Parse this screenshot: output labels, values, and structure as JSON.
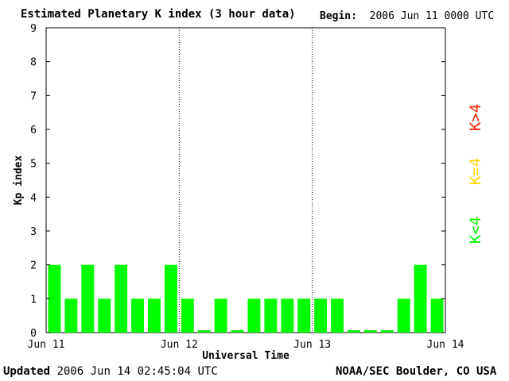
{
  "header": {
    "title": "Estimated Planetary K index (3 hour data)",
    "begin_label": "Begin:",
    "begin_value": "2006 Jun 11 0000 UTC"
  },
  "footer": {
    "updated_label": "Updated",
    "updated_value": "2006 Jun 14 02:45:04 UTC",
    "credit": "NOAA/SEC Boulder, CO USA"
  },
  "legend": [
    {
      "label": "K<4",
      "color": "#00ff00"
    },
    {
      "label": "K=4",
      "color": "#ffd700"
    },
    {
      "label": "K>4",
      "color": "#ff2000"
    }
  ],
  "chart_data": {
    "type": "bar",
    "title": "Estimated Planetary K index (3 hour data)",
    "xlabel": "Universal Time",
    "ylabel": "Kp index",
    "ylim": [
      0,
      9
    ],
    "yticks": [
      0,
      1,
      2,
      3,
      4,
      5,
      6,
      7,
      8,
      9
    ],
    "xticks": [
      "Jun 11",
      "Jun 12",
      "Jun 13",
      "Jun 14"
    ],
    "grid": "dotted vertical lines at day boundaries",
    "bar_color": "#00ff00",
    "series": [
      {
        "values": [
          2,
          1,
          2,
          1,
          2,
          1,
          1,
          2,
          1,
          0,
          1,
          0,
          1,
          1,
          1,
          1,
          1,
          1,
          0,
          0,
          0,
          1,
          2,
          1
        ]
      }
    ]
  }
}
